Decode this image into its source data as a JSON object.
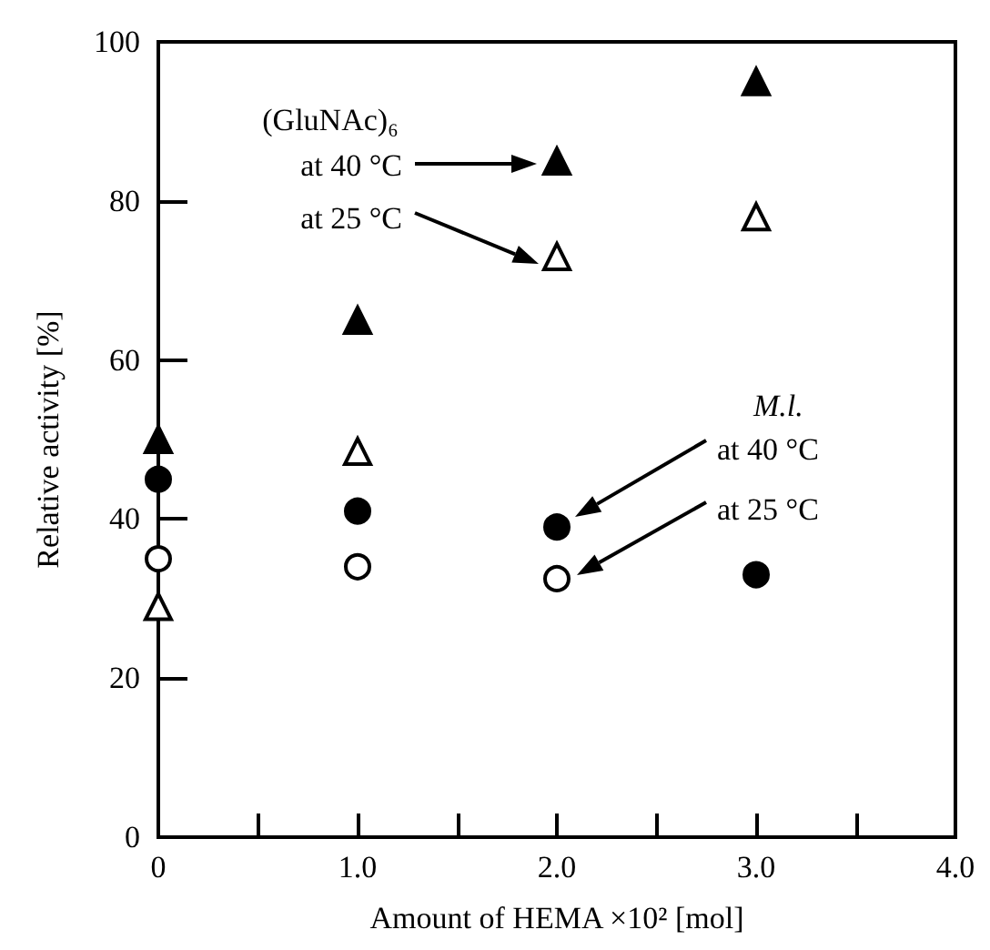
{
  "chart_data": {
    "type": "scatter",
    "xlabel": "Amount of HEMA ×10² [mol]",
    "ylabel": "Relative activity [%]",
    "xlim": [
      0,
      4
    ],
    "ylim": [
      0,
      100
    ],
    "xticks": [
      0,
      {
        "value": 0.5,
        "label": null
      },
      {
        "value": 1,
        "label": "1.0"
      },
      {
        "value": 1.5,
        "label": null
      },
      {
        "value": 2,
        "label": "2.0"
      },
      {
        "value": 2.5,
        "label": null
      },
      {
        "value": 3,
        "label": "3.0"
      },
      {
        "value": 3.5,
        "label": null
      },
      {
        "value": 4,
        "label": "4.0"
      }
    ],
    "yticks": [
      0,
      20,
      40,
      60,
      80,
      100
    ],
    "x": [
      0,
      1,
      2,
      3
    ],
    "grid": false,
    "series": [
      {
        "marker": "triangle",
        "color": "#000000",
        "values": [
          50,
          65,
          85,
          95
        ]
      },
      {
        "marker": "triangle",
        "color": "#ffffff",
        "values": [
          29,
          48.5,
          73,
          78
        ]
      },
      {
        "marker": "circle",
        "color": "#ffffff",
        "values": [
          35,
          34,
          32.5,
          null
        ]
      },
      {
        "marker": "circle",
        "color": "#000000",
        "values": [
          45,
          41,
          39,
          33
        ]
      }
    ],
    "annotations": [
      "(GluNAc)₆",
      "at 40 °C",
      "at 25 °C",
      "M.l.",
      "at 40 °C",
      "at 25 °C"
    ]
  }
}
